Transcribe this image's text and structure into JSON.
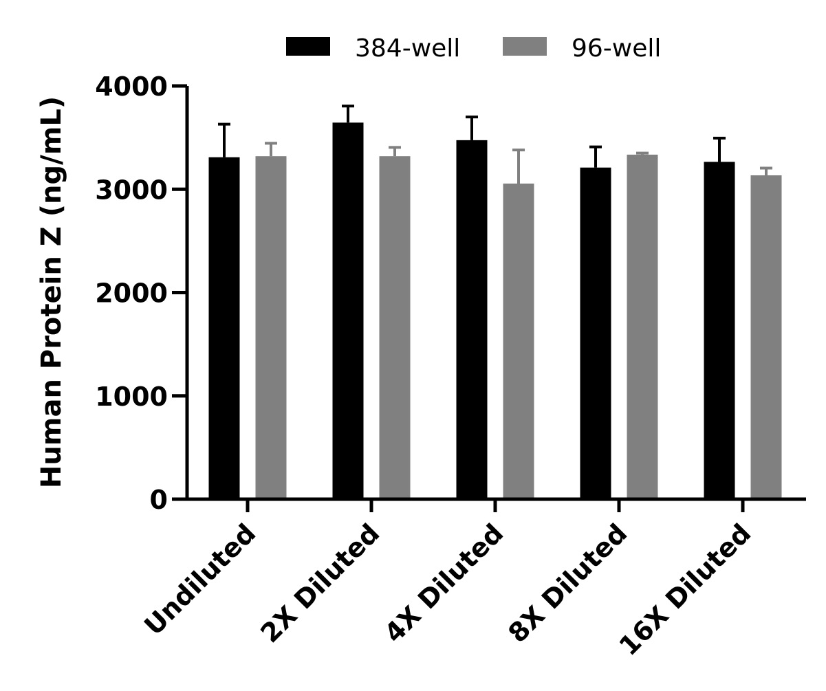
{
  "chart_data": {
    "type": "bar",
    "categories": [
      "Undiluted",
      "2X Diluted",
      "4X Diluted",
      "8X Diluted",
      "16X Diluted"
    ],
    "series": [
      {
        "name": "384-well",
        "color": "#000000",
        "values": [
          3310,
          3645,
          3475,
          3210,
          3265
        ],
        "errors": [
          320,
          160,
          225,
          200,
          230
        ]
      },
      {
        "name": "96-well",
        "color": "#808080",
        "values": [
          3320,
          3320,
          3055,
          3335,
          3135
        ],
        "errors": [
          125,
          85,
          325,
          15,
          70
        ]
      }
    ],
    "title": "",
    "xlabel": "",
    "ylabel": "Human Protein Z (ng/mL)",
    "ylim": [
      0,
      4000
    ],
    "yticks": [
      0,
      1000,
      2000,
      3000,
      4000
    ],
    "ytick_labels": [
      "0",
      "1000",
      "2000",
      "3000",
      "4000"
    ],
    "legend_position": "top",
    "grid": false
  }
}
